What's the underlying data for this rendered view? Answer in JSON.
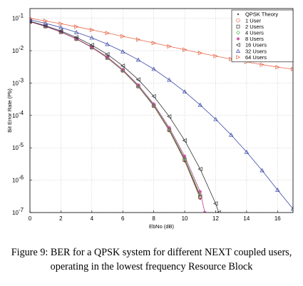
{
  "caption": "Figure 9: BER for a QPSK system for different NEXT coupled users, operating in the lowest frequency Resource Block",
  "chart_data": {
    "type": "line",
    "title": "",
    "xlabel": "EbNo (dB)",
    "ylabel": "Bit Error Rate (Pb)",
    "ylabel_sub": "b",
    "xlim": [
      0,
      17
    ],
    "ylim": [
      1e-07,
      0.2
    ],
    "yscale": "log",
    "grid": true,
    "legend_position": "top-right",
    "x_ticks": [
      0,
      2,
      4,
      6,
      8,
      10,
      12,
      14,
      16
    ],
    "y_ticks": [
      {
        "value": 0.1,
        "label": "10",
        "exp": "-1"
      },
      {
        "value": 0.01,
        "label": "10",
        "exp": "-2"
      },
      {
        "value": 0.001,
        "label": "10",
        "exp": "-3"
      },
      {
        "value": 0.0001,
        "label": "10",
        "exp": "-4"
      },
      {
        "value": 1e-05,
        "label": "10",
        "exp": "-5"
      },
      {
        "value": 1e-06,
        "label": "10",
        "exp": "-6"
      },
      {
        "value": 1e-07,
        "label": "10",
        "exp": "-7"
      }
    ],
    "series": [
      {
        "name": "QPSK Theory",
        "marker": "dot",
        "color": "#555555",
        "line": "dotted",
        "x": [
          0,
          1,
          2,
          3,
          4,
          5,
          6,
          7,
          8,
          9,
          10,
          11
        ],
        "y": [
          0.0786,
          0.0563,
          0.0375,
          0.0229,
          0.0125,
          0.00595,
          0.00239,
          0.000773,
          0.000191,
          3.36e-05,
          3.87e-06,
          2.61e-07
        ]
      },
      {
        "name": "1 User",
        "marker": "circle",
        "color": "#e8674a",
        "line": "solid",
        "x": [
          0,
          1,
          2,
          3,
          4,
          5,
          6,
          7,
          8,
          9,
          10,
          11
        ],
        "y": [
          0.0787,
          0.0564,
          0.0376,
          0.023,
          0.0126,
          0.006,
          0.00243,
          0.00079,
          0.000198,
          3.5e-05,
          4.1e-06,
          2.9e-07
        ]
      },
      {
        "name": "2 Users",
        "marker": "square",
        "color": "#333333",
        "line": "solid",
        "x": [
          0,
          1,
          2,
          3,
          4,
          5,
          6,
          7,
          8,
          9,
          10,
          11
        ],
        "y": [
          0.0788,
          0.0565,
          0.0377,
          0.0231,
          0.0127,
          0.0061,
          0.00246,
          0.0008,
          0.000202,
          3.6e-05,
          4.3e-06,
          3.1e-07
        ]
      },
      {
        "name": "4 Users",
        "marker": "diamond",
        "color": "#5cb85c",
        "line": "solid",
        "x": [
          0,
          1,
          2,
          3,
          4,
          5,
          6,
          7,
          8,
          9,
          10,
          11
        ],
        "y": [
          0.0789,
          0.0566,
          0.0378,
          0.0232,
          0.0128,
          0.0062,
          0.0025,
          0.00082,
          0.00021,
          3.8e-05,
          4.7e-06,
          3.5e-07
        ]
      },
      {
        "name": "8 Users",
        "marker": "star",
        "color": "#c0399a",
        "line": "solid",
        "x": [
          0,
          1,
          2,
          3,
          4,
          5,
          6,
          7,
          8,
          9,
          10,
          11,
          11.3
        ],
        "y": [
          0.0791,
          0.0569,
          0.0381,
          0.0235,
          0.013,
          0.0064,
          0.0026,
          0.00087,
          0.000225,
          4.2e-05,
          5.5e-06,
          4.4e-07,
          1e-07
        ]
      },
      {
        "name": "16 Users",
        "marker": "triangle-left",
        "color": "#333333",
        "line": "solid",
        "x": [
          0,
          1,
          2,
          3,
          4,
          5,
          6,
          7,
          8,
          9,
          10,
          11,
          12,
          12.2
        ],
        "y": [
          0.081,
          0.059,
          0.0405,
          0.0258,
          0.0149,
          0.0077,
          0.0034,
          0.00128,
          0.00039,
          9.3e-05,
          1.68e-05,
          2.2e-06,
          1.9e-07,
          1e-07
        ]
      },
      {
        "name": "32 Users",
        "marker": "triangle-up",
        "color": "#3b4aa8",
        "line": "solid",
        "x": [
          0,
          1,
          2,
          3,
          4,
          5,
          6,
          7,
          8,
          9,
          10,
          11,
          12,
          13,
          14,
          15,
          16,
          17
        ],
        "y": [
          0.09,
          0.07,
          0.052,
          0.037,
          0.025,
          0.0158,
          0.0094,
          0.0052,
          0.0027,
          0.00125,
          0.00054,
          0.00021,
          7.6e-05,
          2.5e-05,
          7.4e-06,
          2e-06,
          5e-07,
          1.3e-07
        ]
      },
      {
        "name": "64 Users",
        "marker": "triangle-right",
        "color": "#e8674a",
        "line": "solid",
        "x": [
          0,
          1,
          2,
          3,
          4,
          5,
          6,
          7,
          8,
          9,
          10,
          11,
          12,
          13,
          14,
          15,
          16,
          17
        ],
        "y": [
          0.1,
          0.083,
          0.068,
          0.055,
          0.044,
          0.035,
          0.0278,
          0.022,
          0.0173,
          0.0136,
          0.0107,
          0.0085,
          0.0068,
          0.0055,
          0.0045,
          0.0037,
          0.0031,
          0.0027
        ]
      }
    ]
  }
}
